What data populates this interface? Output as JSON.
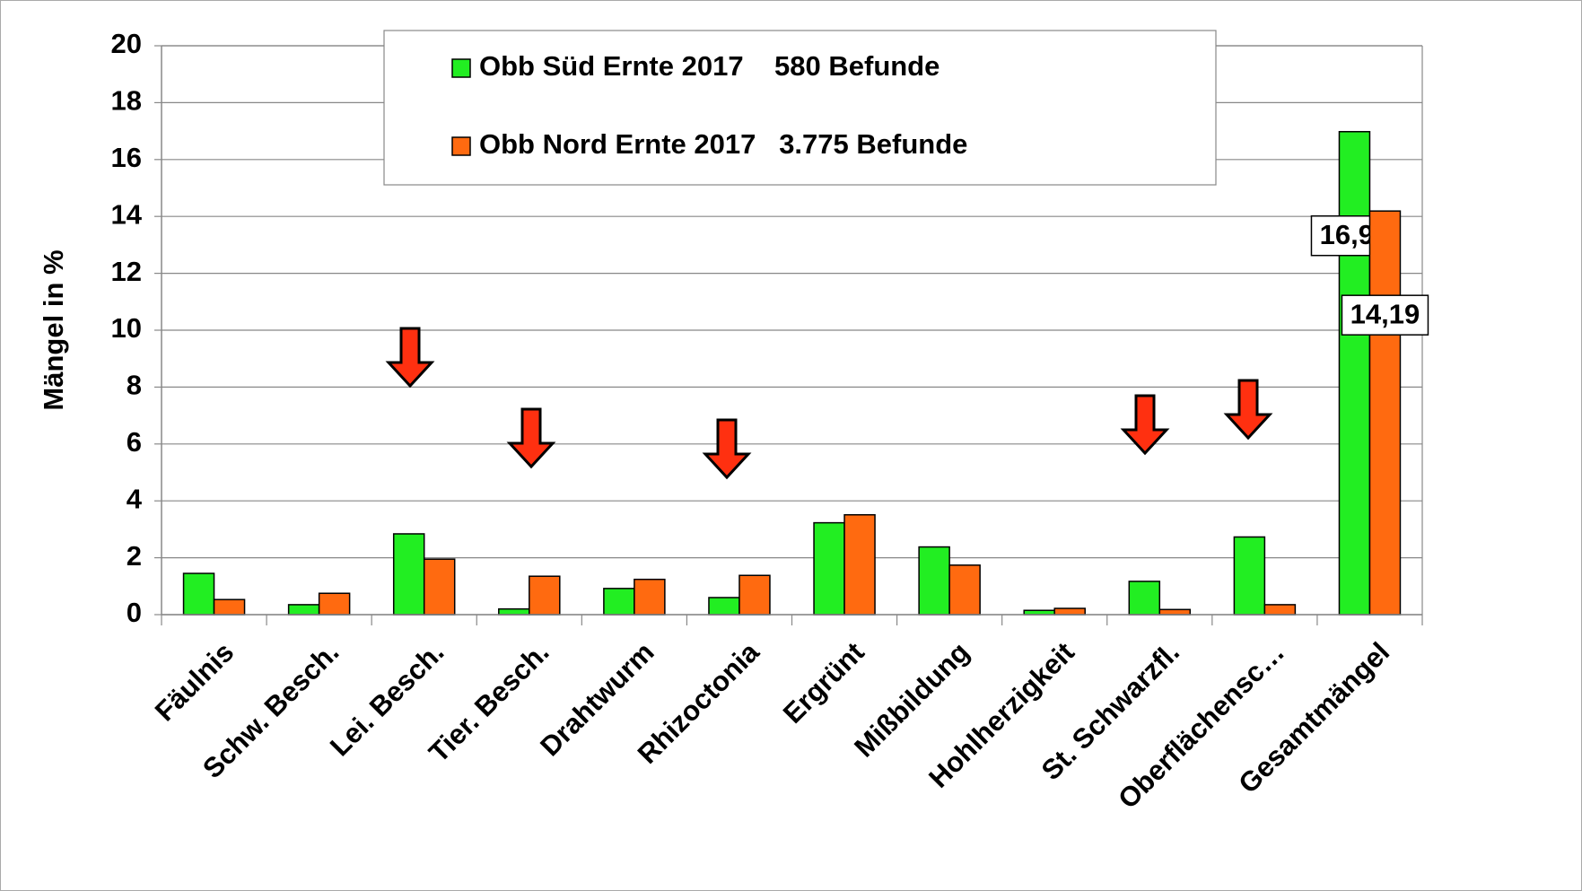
{
  "chart_data": {
    "type": "bar",
    "y_label": "Mängel in %",
    "categories": [
      "Fäulnis",
      "Schw. Besch.",
      "Lei. Besch.",
      "Tier. Besch.",
      "Drahtwurm",
      "Rhizoctonia",
      "Ergrünt",
      "Mißbildung",
      "Hohlherzigkeit",
      "St. Schwarzfl.",
      "Oberflächensc…",
      "Gesamtmängel"
    ],
    "series": [
      {
        "name": "Obb Süd Ernte 2017    580 Befunde",
        "color": "#22ee22",
        "values": [
          1.45,
          0.35,
          2.84,
          0.2,
          0.92,
          0.6,
          3.23,
          2.38,
          0.15,
          1.17,
          2.73,
          16.98
        ],
        "value_labels": [
          null,
          null,
          null,
          null,
          null,
          null,
          null,
          null,
          null,
          null,
          null,
          "16,98"
        ]
      },
      {
        "name": "Obb Nord Ernte 2017   3.775 Befunde",
        "color": "#ff6a10",
        "values": [
          0.53,
          0.75,
          1.95,
          1.35,
          1.24,
          1.38,
          3.51,
          1.74,
          0.22,
          0.18,
          0.35,
          14.19
        ],
        "value_labels": [
          null,
          null,
          null,
          null,
          null,
          null,
          null,
          null,
          null,
          null,
          null,
          "14,19"
        ]
      }
    ],
    "ylim": [
      0,
      20
    ],
    "yticks": [
      0,
      2,
      4,
      6,
      8,
      10,
      12,
      14,
      16,
      18,
      20
    ],
    "grid": true
  }
}
